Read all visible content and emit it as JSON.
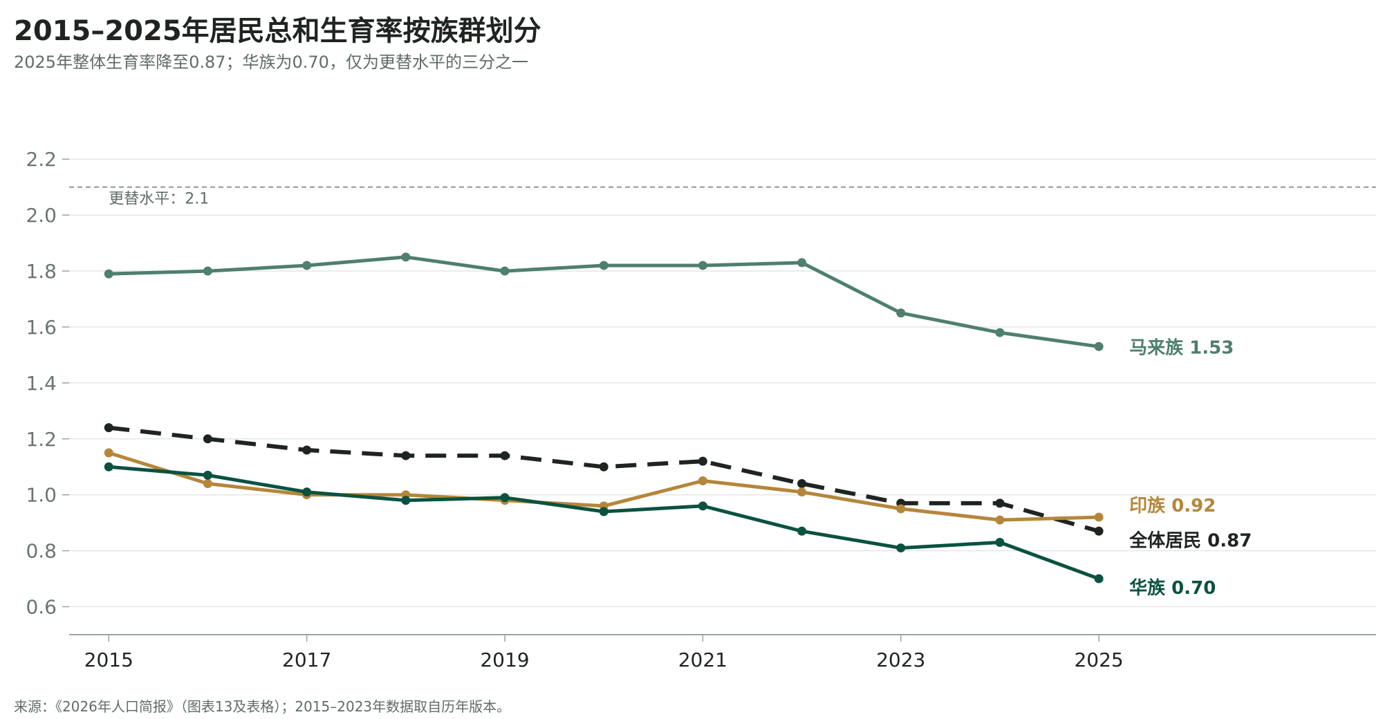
{
  "title": "2015–2025年居民总和生育率按族群划分",
  "subtitle": "2025年整体生育率降至0.87；华族为0.70，仅为更替水平的三分之一",
  "source": "来源：《2026年人口简报》（图表13及表格）；2015–2023年数据取自历年版本。",
  "chart_data": {
    "type": "line",
    "x": [
      2015,
      2016,
      2017,
      2018,
      2019,
      2020,
      2021,
      2022,
      2023,
      2024,
      2025
    ],
    "x_tick_labels": [
      "2015",
      "2017",
      "2019",
      "2021",
      "2023",
      "2025"
    ],
    "y_tick_labels": [
      "0.6",
      "0.8",
      "1.0",
      "1.2",
      "1.4",
      "1.6",
      "1.8",
      "2.0",
      "2.2"
    ],
    "xlim": [
      2014.6,
      2027.8
    ],
    "ylim": [
      0.5,
      2.25
    ],
    "grid": true,
    "reference_line": {
      "value": 2.1,
      "label": "更替水平：2.1"
    },
    "series": [
      {
        "name": "马来族",
        "end_label": "马来族 1.53",
        "color": "#4f7f6e",
        "dashed": false,
        "values": [
          1.79,
          1.8,
          1.82,
          1.85,
          1.8,
          1.82,
          1.82,
          1.83,
          1.65,
          1.58,
          1.53
        ]
      },
      {
        "name": "全体居民",
        "end_label": "全体居民 0.87",
        "color": "#1f2421",
        "dashed": true,
        "values": [
          1.24,
          1.2,
          1.16,
          1.14,
          1.14,
          1.1,
          1.12,
          1.04,
          0.97,
          0.97,
          0.87
        ]
      },
      {
        "name": "印族",
        "end_label": "印族 0.92",
        "color": "#b5863a",
        "dashed": false,
        "values": [
          1.15,
          1.04,
          1.0,
          1.0,
          0.98,
          0.96,
          1.05,
          1.01,
          0.95,
          0.91,
          0.92
        ]
      },
      {
        "name": "华族",
        "end_label": "华族 0.70",
        "color": "#0a5240",
        "dashed": false,
        "values": [
          1.1,
          1.07,
          1.01,
          0.98,
          0.99,
          0.94,
          0.96,
          0.87,
          0.81,
          0.83,
          0.7
        ]
      }
    ]
  }
}
